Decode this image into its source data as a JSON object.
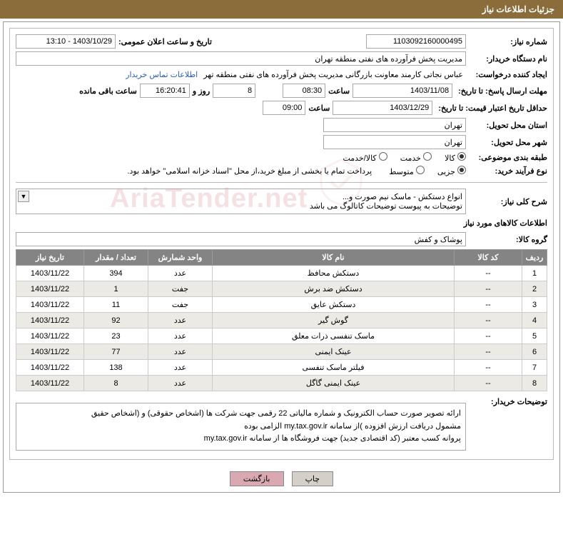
{
  "title": "جزئیات اطلاعات نیاز",
  "labels": {
    "need_no": "شماره نیاز:",
    "ann_dt": "تاریخ و ساعت اعلان عمومی:",
    "buyer": "نام دستگاه خریدار:",
    "requester": "ایجاد کننده درخواست:",
    "contact": "اطلاعات تماس خریدار",
    "deadline": "مهلت ارسال پاسخ: تا تاریخ:",
    "time": "ساعت",
    "days_and": "روز و",
    "remain": "ساعت باقی مانده",
    "validity": "حداقل تاریخ اعتبار قیمت: تا تاریخ:",
    "province": "استان محل تحویل:",
    "city": "شهر محل تحویل:",
    "category": "طبقه بندی موضوعی:",
    "process": "نوع فرآیند خرید:",
    "opt_goods": "کالا",
    "opt_service": "خدمت",
    "opt_both": "کالا/خدمت",
    "opt_minor": "جزیی",
    "opt_medium": "متوسط",
    "process_note": "پرداخت تمام یا بخشی از مبلغ خرید،از محل \"اسناد خزانه اسلامی\" خواهد بود.",
    "summary": "شرح کلی نیاز:",
    "items_h": "اطلاعات کالاهای مورد نیاز",
    "group": "گروه کالا:",
    "buyer_notes": "توضیحات خریدار:",
    "print": "چاپ",
    "back": "بازگشت"
  },
  "values": {
    "need_no": "1103092160000495",
    "ann_dt": "1403/10/29 - 13:10",
    "buyer": "مدیریت پخش فرآورده های نفتی منطقه تهران",
    "requester": "عباس نجاتی کارمند معاونت بازرگانی مدیریت پخش فرآورده های نفتی منطقه تهر",
    "deadline_date": "1403/11/08",
    "deadline_time": "08:30",
    "days": "8",
    "countdown": "16:20:41",
    "validity_date": "1403/12/29",
    "validity_time": "09:00",
    "province": "تهران",
    "city": "تهران",
    "summary_l1": "انواع دستکش - ماسک نیم صورت و...",
    "summary_l2": "توضیحات به پیوست توضیحات کاتالوگ می باشد",
    "group": "پوشاک و کفش",
    "notes_l1": "ارائه  تصویر صورت حساب الکترونیک و شماره مالیاتی 22 رقمی  جهت شرکت ها (اشخاص حقوقی) و (اشخاص حقیق",
    "notes_l2": "مشمول دریافت ارزش افزوده )از سامانه my.tax.gov.ir   الزامی بوده",
    "notes_l3": "پروانه کسب معتبر (کد اقتصادی جدید) جهت فروشگاه ها از سامانه my.tax.gov.ir"
  },
  "cols": {
    "row": "ردیف",
    "code": "کد کالا",
    "name": "نام کالا",
    "unit": "واحد شمارش",
    "qty": "تعداد / مقدار",
    "date": "تاریخ نیاز"
  },
  "rows": [
    {
      "n": "1",
      "code": "--",
      "name": "دستکش محافظ",
      "unit": "عدد",
      "qty": "394",
      "date": "1403/11/22"
    },
    {
      "n": "2",
      "code": "--",
      "name": "دستکش ضد برش",
      "unit": "جفت",
      "qty": "1",
      "date": "1403/11/22"
    },
    {
      "n": "3",
      "code": "--",
      "name": "دستکش عایق",
      "unit": "جفت",
      "qty": "11",
      "date": "1403/11/22"
    },
    {
      "n": "4",
      "code": "--",
      "name": "گوش گیر",
      "unit": "عدد",
      "qty": "92",
      "date": "1403/11/22"
    },
    {
      "n": "5",
      "code": "--",
      "name": "ماسک تنفسی ذرات معلق",
      "unit": "عدد",
      "qty": "23",
      "date": "1403/11/22"
    },
    {
      "n": "6",
      "code": "--",
      "name": "عینک ایمنی",
      "unit": "عدد",
      "qty": "77",
      "date": "1403/11/22"
    },
    {
      "n": "7",
      "code": "--",
      "name": "فیلتر ماسک تنفسی",
      "unit": "عدد",
      "qty": "138",
      "date": "1403/11/22"
    },
    {
      "n": "8",
      "code": "--",
      "name": "عینک ایمنی گاگل",
      "unit": "عدد",
      "qty": "8",
      "date": "1403/11/22"
    }
  ],
  "wm": "AriaTender.net"
}
